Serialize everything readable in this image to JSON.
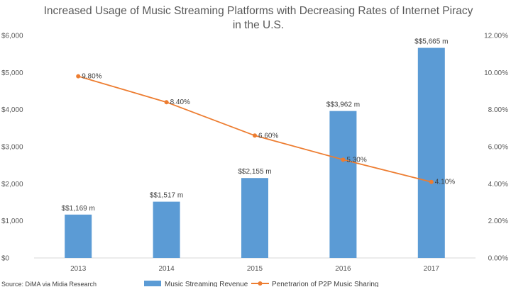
{
  "chart_data": {
    "type": "bar+line",
    "title_lines": [
      "Increased Usage of Music Streaming Platforms with Decreasing Rates of Internet Piracy",
      "in the U.S."
    ],
    "categories": [
      "2013",
      "2014",
      "2015",
      "2016",
      "2017"
    ],
    "series": [
      {
        "name": "Music Streaming Revenue",
        "type": "bar",
        "axis": "left",
        "color": "#5b9bd5",
        "values": [
          1169,
          1517,
          2155,
          3962,
          5665
        ],
        "data_labels": [
          "$$1,169 m",
          "$$1,517 m",
          "$$2,155 m",
          "$$3,962 m",
          "$$5,665 m"
        ]
      },
      {
        "name": "Penetrarion of P2P Music Sharing",
        "type": "line",
        "axis": "right",
        "color": "#ed7d31",
        "values": [
          9.8,
          8.4,
          6.6,
          5.3,
          4.1
        ],
        "data_labels": [
          "9.80%",
          "8.40%",
          "6.60%",
          "5.30%",
          "4.10%"
        ]
      }
    ],
    "left_axis": {
      "ylim": [
        0,
        6000
      ],
      "ticks": [
        0,
        1000,
        2000,
        3000,
        4000,
        5000,
        6000
      ],
      "tick_labels": [
        "$0",
        "$1,000",
        "$2,000",
        "$3,000",
        "$4,000",
        "$5,000",
        "$6,000"
      ]
    },
    "right_axis": {
      "ylim": [
        0,
        12
      ],
      "ticks": [
        0,
        2,
        4,
        6,
        8,
        10,
        12
      ],
      "tick_labels": [
        "0.00%",
        "2.00%",
        "4.00%",
        "6.00%",
        "8.00%",
        "10.00%",
        "12.00%"
      ]
    },
    "grid": false,
    "legend_position": "bottom",
    "source": "Source: DiMA via Midia Research"
  }
}
